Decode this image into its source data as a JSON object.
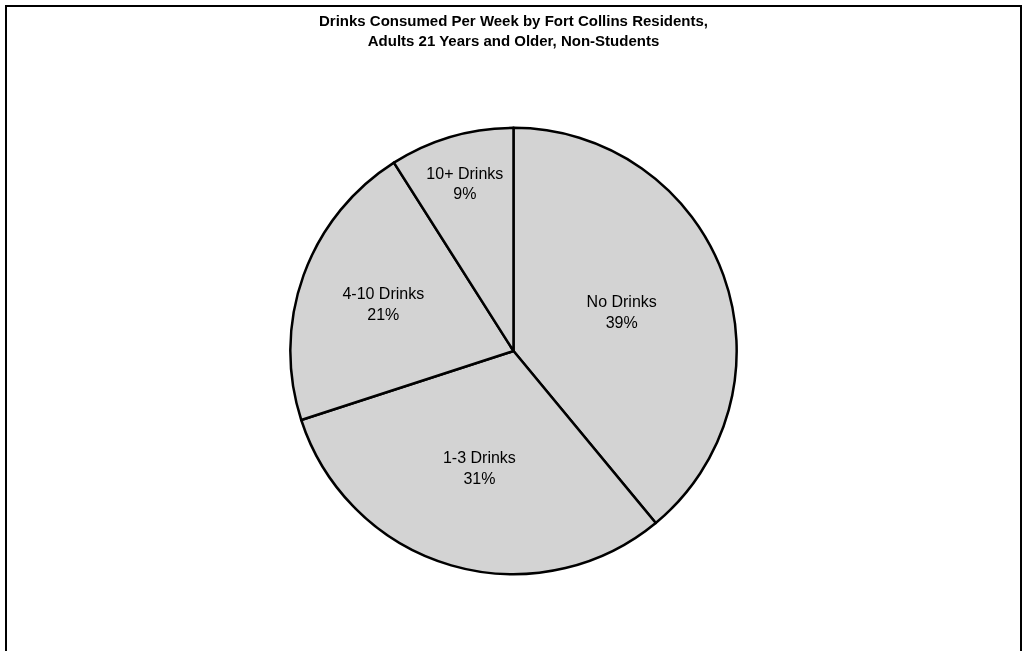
{
  "chart_data": {
    "type": "pie",
    "title": "Drinks Consumed Per Week by Fort Collins Residents,\nAdults 21 Years and Older, Non-Students",
    "categories": [
      "No Drinks",
      "1-3 Drinks",
      "4-10 Drinks",
      "10+ Drinks"
    ],
    "values": [
      39,
      31,
      21,
      9
    ],
    "value_labels": [
      "39%",
      "31%",
      "21%",
      "9%"
    ],
    "colors": [
      "#d3d3d3",
      "#d3d3d3",
      "#d3d3d3",
      "#d3d3d3"
    ],
    "legend": false
  }
}
